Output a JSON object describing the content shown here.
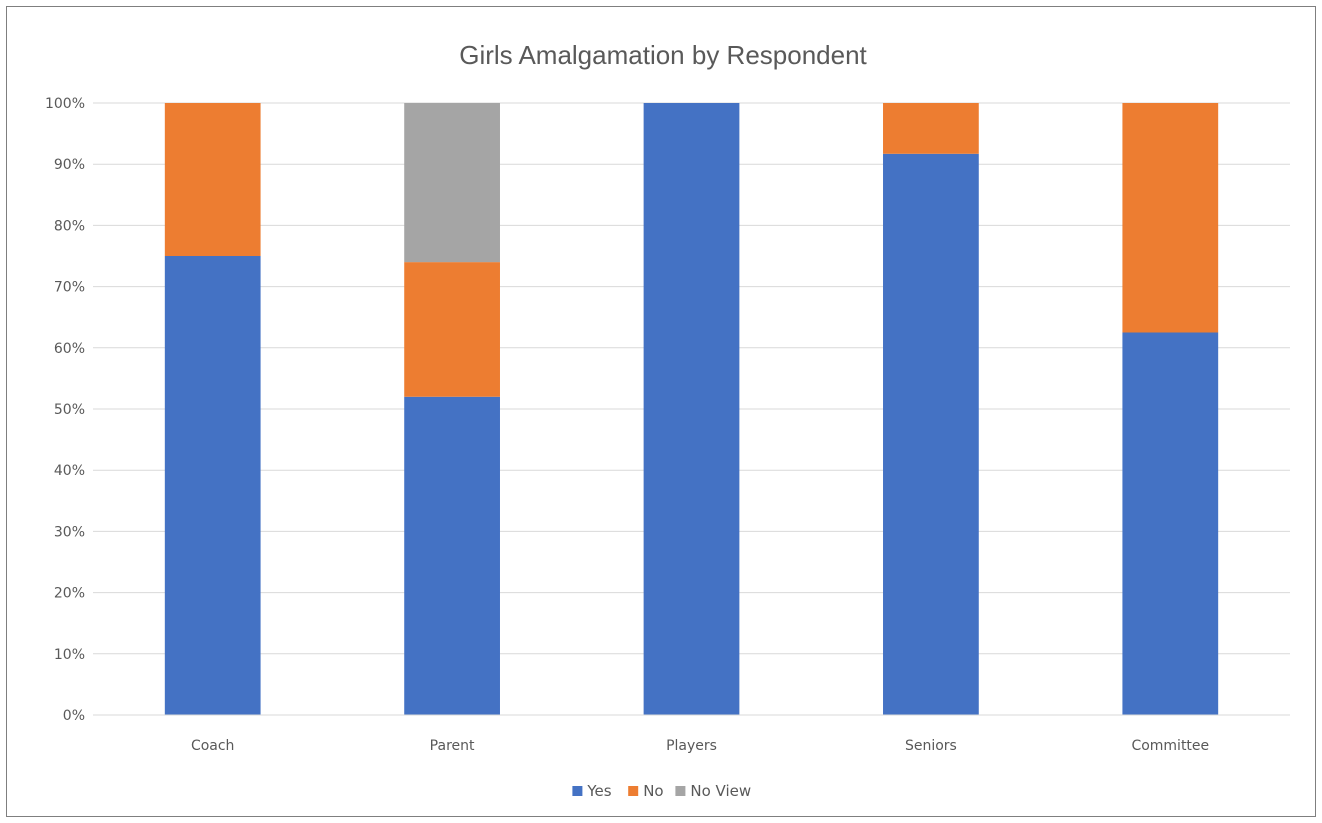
{
  "chart_data": {
    "type": "bar",
    "stacked": true,
    "title": "Girls Amalgamation by Respondent",
    "xlabel": "",
    "ylabel": "",
    "ylim": [
      0,
      1
    ],
    "y_ticks": [
      "0%",
      "10%",
      "20%",
      "30%",
      "40%",
      "50%",
      "60%",
      "70%",
      "80%",
      "90%",
      "100%"
    ],
    "grid": true,
    "legend_position": "bottom",
    "categories": [
      "Coach",
      "Parent",
      "Players",
      "Seniors",
      "Committee"
    ],
    "series": [
      {
        "name": "Yes",
        "color": "#4472C4",
        "values": [
          0.75,
          0.52,
          1.0,
          0.917,
          0.625
        ]
      },
      {
        "name": "No",
        "color": "#ED7D31",
        "values": [
          0.25,
          0.22,
          0.0,
          0.083,
          0.375
        ]
      },
      {
        "name": "No View",
        "color": "#A5A5A5",
        "values": [
          0.0,
          0.26,
          0.0,
          0.0,
          0.0
        ]
      }
    ]
  }
}
